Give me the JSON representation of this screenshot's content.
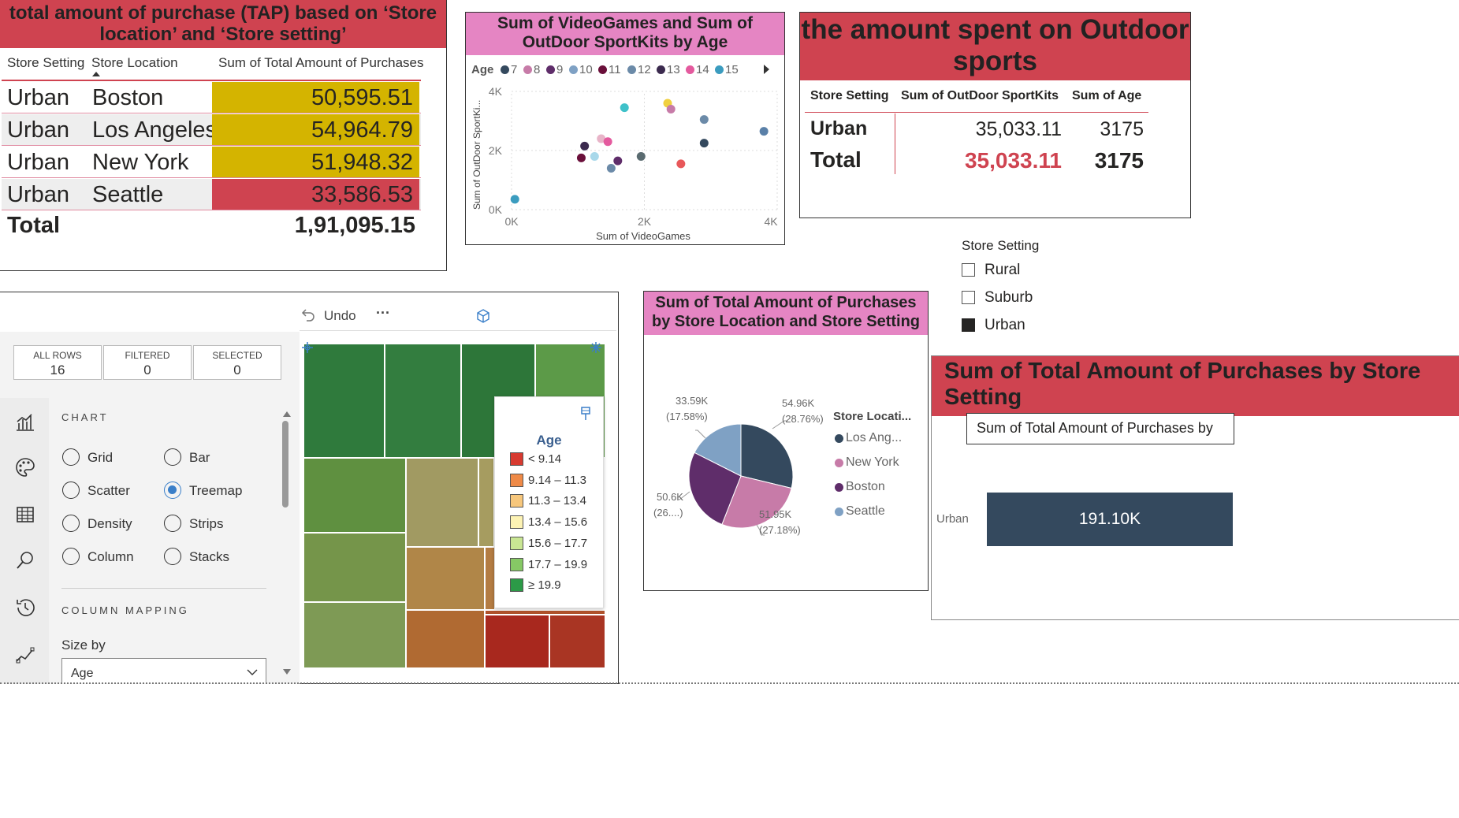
{
  "tap_table": {
    "title": "total amount of purchase (TAP) based on ‘Store location’ and ‘Store setting’",
    "col_setting": "Store Setting",
    "col_location": "Store Location",
    "col_sum": "Sum of Total Amount of Purchases",
    "rows": [
      {
        "setting": "Urban",
        "location": "Boston",
        "value": "50,595.51",
        "color": "#d4b400"
      },
      {
        "setting": "Urban",
        "location": "Los Angeles",
        "value": "54,964.79",
        "color": "#d4b400"
      },
      {
        "setting": "Urban",
        "location": "New York",
        "value": "51,948.32",
        "color": "#d4b400"
      },
      {
        "setting": "Urban",
        "location": "Seattle",
        "value": "33,586.53",
        "color": "#cf4350"
      }
    ],
    "total_label": "Total",
    "total_value": "1,91,095.15"
  },
  "scatter": {
    "title": "Sum of VideoGames and Sum of OutDoor SportKits by Age",
    "legend_title": "Age",
    "legend": [
      {
        "label": "7",
        "color": "#34495e"
      },
      {
        "label": "8",
        "color": "#c77ba8"
      },
      {
        "label": "9",
        "color": "#5f2d6a"
      },
      {
        "label": "10",
        "color": "#7fa1c4"
      },
      {
        "label": "11",
        "color": "#6a0f3a"
      },
      {
        "label": "12",
        "color": "#6b8aa8"
      },
      {
        "label": "13",
        "color": "#3b2a4e"
      },
      {
        "label": "14",
        "color": "#e45a9e"
      },
      {
        "label": "15",
        "color": "#3b9cbf"
      }
    ],
    "ylabel": "Sum of OutDoor SportKi...",
    "xlabel": "Sum of VideoGames",
    "yticks": [
      "0K",
      "2K",
      "4K"
    ],
    "xticks": [
      "0K",
      "2K",
      "4K"
    ]
  },
  "outdoor": {
    "title": "the amount spent on Outdoor sports",
    "col1": "Store Setting",
    "col2": "Sum of OutDoor SportKits",
    "col3": "Sum of Age",
    "row_label": "Urban",
    "row_v1": "35,033.11",
    "row_v2": "3175",
    "total_label": "Total",
    "total_v1": "35,033.11",
    "total_v2": "3175"
  },
  "slicer": {
    "title": "Store Setting",
    "items": [
      {
        "label": "Rural",
        "checked": false
      },
      {
        "label": "Suburb",
        "checked": false
      },
      {
        "label": "Urban",
        "checked": true
      }
    ]
  },
  "treemap_panel": {
    "undo": "Undo",
    "more": "···",
    "counts": [
      {
        "label": "ALL ROWS",
        "value": "16"
      },
      {
        "label": "FILTERED",
        "value": "0"
      },
      {
        "label": "SELECTED",
        "value": "0"
      }
    ],
    "chart_heading": "CHART",
    "chart_options": [
      {
        "label": "Grid",
        "selected": false
      },
      {
        "label": "Bar",
        "selected": false
      },
      {
        "label": "Scatter",
        "selected": false
      },
      {
        "label": "Treemap",
        "selected": true
      },
      {
        "label": "Density",
        "selected": false
      },
      {
        "label": "Strips",
        "selected": false
      },
      {
        "label": "Column",
        "selected": false
      },
      {
        "label": "Stacks",
        "selected": false
      }
    ],
    "mapping_heading": "COLUMN MAPPING",
    "size_by_label": "Size by",
    "size_by_value": "Age",
    "legend_title": "Age",
    "legend": [
      {
        "label": "< 9.14",
        "color": "#d73a30"
      },
      {
        "label": "9.14 – 11.3",
        "color": "#ef8a47"
      },
      {
        "label": "11.3 – 13.4",
        "color": "#f7c77c"
      },
      {
        "label": "13.4 – 15.6",
        "color": "#fdf3b4"
      },
      {
        "label": "15.6 – 17.7",
        "color": "#c9e693"
      },
      {
        "label": "17.7 – 19.9",
        "color": "#86c865"
      },
      {
        "label": "≥ 19.9",
        "color": "#2c9a47"
      }
    ]
  },
  "pie": {
    "title": "Sum of Total Amount of Purchases by Store Location and Store Setting",
    "legend_title": "Store Locati...",
    "legend": [
      {
        "label": "Los Ang...",
        "color": "#34495e"
      },
      {
        "label": "New York",
        "color": "#c77ba8"
      },
      {
        "label": "Boston",
        "color": "#5f2d6a"
      },
      {
        "label": "Seattle",
        "color": "#7fa1c4"
      }
    ],
    "labels": {
      "la": "54.96K",
      "la_pct": "(28.76%)",
      "ny": "51.95K",
      "ny_pct": "(27.18%)",
      "bos": "50.6K",
      "bos_pct": "(26....)",
      "sea": "33.59K",
      "sea_pct": "(17.58%)"
    }
  },
  "bar": {
    "title": "Sum of Total Amount of Purchases by Store Setting",
    "tooltip": "Sum of Total Amount of Purchases by",
    "category": "Urban",
    "value_label": "191.10K",
    "color": "#34495e"
  },
  "chart_data": [
    {
      "type": "scatter",
      "title": "Sum of VideoGames and Sum of OutDoor SportKits by Age",
      "xlabel": "Sum of VideoGames",
      "ylabel": "Sum of OutDoor SportKi...",
      "xlim": [
        0,
        4000
      ],
      "ylim": [
        0,
        4000
      ],
      "grid": true,
      "points": [
        {
          "x": 50,
          "y": 350,
          "color": "#3b9cbf"
        },
        {
          "x": 1050,
          "y": 1750,
          "color": "#6a0f3a"
        },
        {
          "x": 1100,
          "y": 2150,
          "color": "#3b2a4e"
        },
        {
          "x": 1250,
          "y": 1800,
          "color": "#a8d8ea"
        },
        {
          "x": 1350,
          "y": 2400,
          "color": "#e8b4c8"
        },
        {
          "x": 1450,
          "y": 2300,
          "color": "#e45a9e"
        },
        {
          "x": 1500,
          "y": 1400,
          "color": "#6b8aa8"
        },
        {
          "x": 1600,
          "y": 1650,
          "color": "#5f2d6a"
        },
        {
          "x": 1700,
          "y": 3450,
          "color": "#3fc1c9"
        },
        {
          "x": 1950,
          "y": 1800,
          "color": "#5a6b70"
        },
        {
          "x": 2350,
          "y": 3600,
          "color": "#f0d040"
        },
        {
          "x": 2400,
          "y": 3400,
          "color": "#c77ba8"
        },
        {
          "x": 2550,
          "y": 1550,
          "color": "#e8585a"
        },
        {
          "x": 2900,
          "y": 3050,
          "color": "#6b8aa8"
        },
        {
          "x": 2900,
          "y": 2250,
          "color": "#34495e"
        },
        {
          "x": 3800,
          "y": 2650,
          "color": "#5a80a8"
        }
      ]
    },
    {
      "type": "table",
      "title": "the amount spent on Outdoor sports",
      "columns": [
        "Store Setting",
        "Sum of OutDoor SportKits",
        "Sum of Age"
      ],
      "rows": [
        [
          "Urban",
          "35,033.11",
          "3175"
        ],
        [
          "Total",
          "35,033.11",
          "3175"
        ]
      ]
    },
    {
      "type": "pie",
      "title": "Sum of Total Amount of Purchases by Store Location and Store Setting",
      "categories": [
        "Los Ang...",
        "New York",
        "Boston",
        "Seattle"
      ],
      "values": [
        54964.79,
        51948.32,
        50595.51,
        33586.53
      ]
    },
    {
      "type": "bar",
      "title": "Sum of Total Amount of Purchases by Store Setting",
      "categories": [
        "Urban"
      ],
      "values": [
        191100
      ]
    }
  ]
}
